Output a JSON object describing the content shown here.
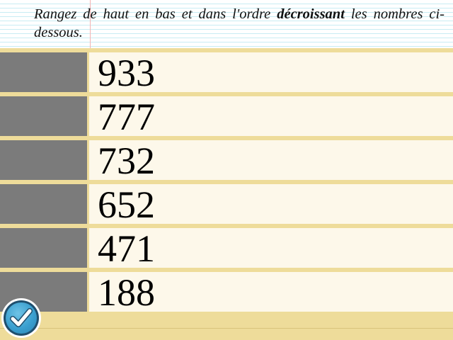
{
  "instruction": {
    "before": "Rangez de haut en bas et dans l'ordre ",
    "emphasis": "décroissant",
    "after": " les nombres ci-dessous."
  },
  "numbers": [
    "933",
    "777",
    "732",
    "652",
    "471",
    "188"
  ],
  "check_button": {
    "icon": "checkmark-icon"
  },
  "colors": {
    "handle": "#7b7b7b",
    "cell": "#fdf8ea",
    "background": "#eedc9a",
    "button": "#3a9fcf"
  }
}
